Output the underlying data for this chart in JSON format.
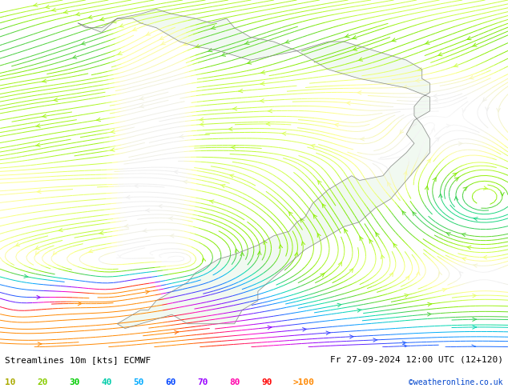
{
  "title_left": "Streamlines 10m [kts] ECMWF",
  "title_right": "Fr 27-09-2024 12:00 UTC (12+120)",
  "credit": "©weatheronline.co.uk",
  "legend_labels": [
    "10",
    "20",
    "30",
    "40",
    "50",
    "60",
    "70",
    "80",
    "90",
    ">100"
  ],
  "legend_colors": [
    "#aaaa00",
    "#88bb00",
    "#00bb00",
    "#00bbaa",
    "#00aaff",
    "#0044ff",
    "#aa00ff",
    "#ff00aa",
    "#ff0000",
    "#ff6600"
  ],
  "bg_color": "#ffffff",
  "ocean_color": "#f4f4f4",
  "land_color": "#e8f5e8",
  "coast_color": "#888888",
  "figsize": [
    6.34,
    4.9
  ],
  "dpi": 100,
  "lon_min": -90,
  "lon_max": -25,
  "lat_min": -60,
  "lat_max": 15,
  "font_size_title": 8,
  "font_size_legend": 8,
  "font_size_credit": 7,
  "streamline_density": 3.0,
  "streamline_lw": 0.7,
  "streamline_arrowsize": 0.8
}
